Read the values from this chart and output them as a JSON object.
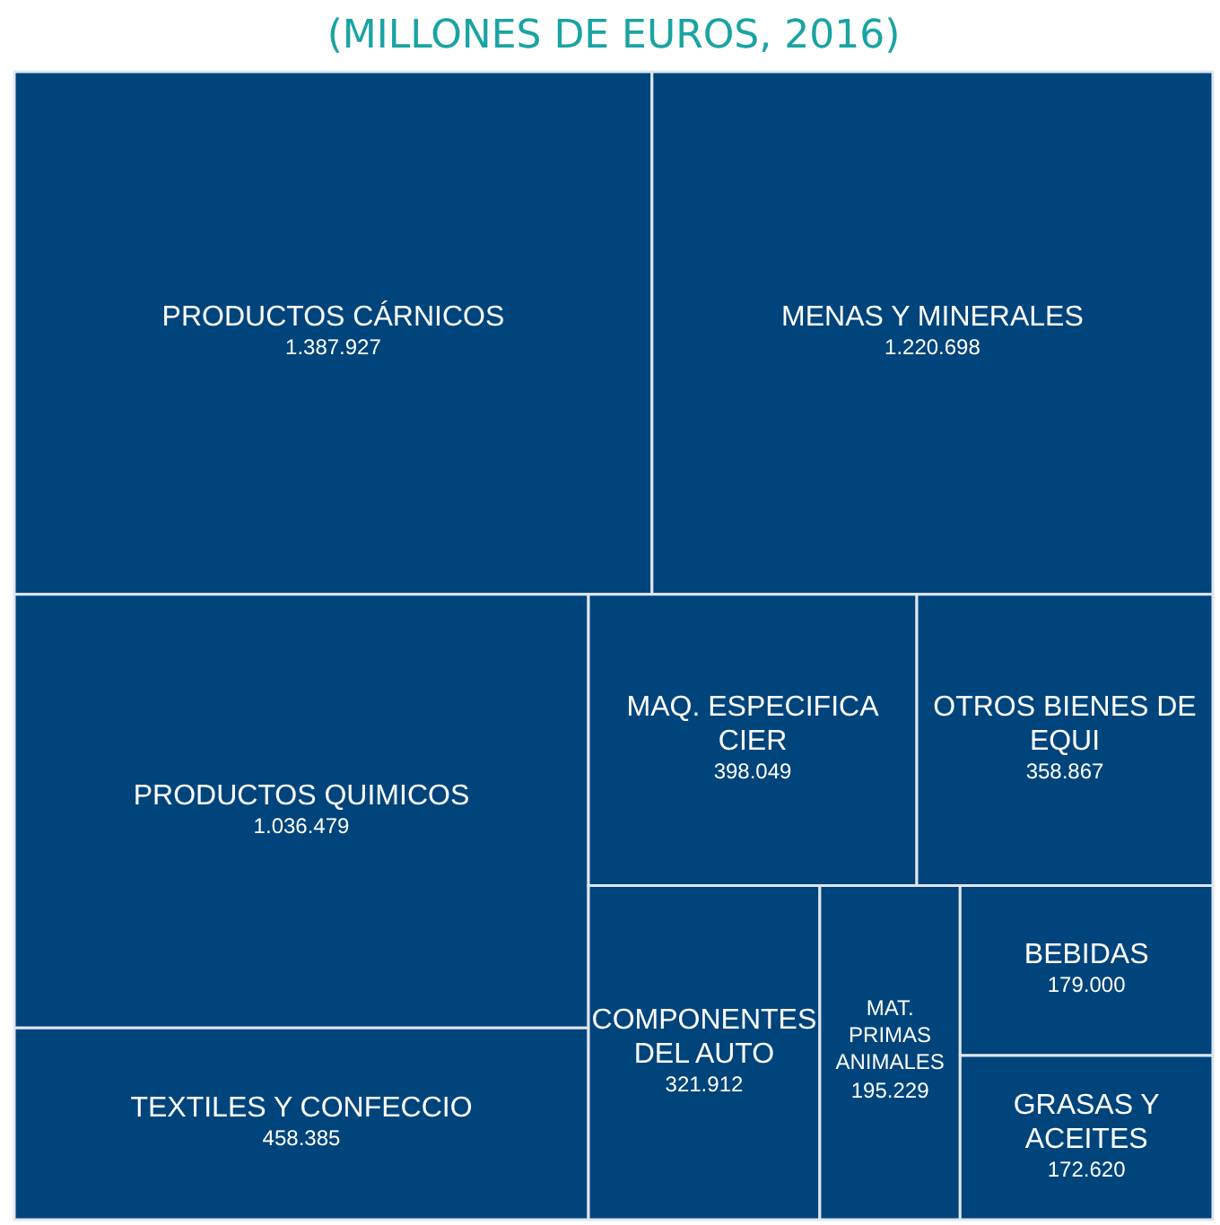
{
  "chart_data": {
    "type": "other",
    "title": "(MILLONES DE EUROS, 2016)",
    "categories": [
      "PRODUCTOS CÁRNICOS",
      "MENAS Y MINERALES",
      "PRODUCTOS QUIMICOS",
      "TEXTILES Y CONFECCIO",
      "MAQ. ESPECIFICA CIER",
      "OTROS BIENES DE EQUI",
      "COMPONENTES DEL AUTO",
      "MAT. PRIMAS ANIMALES",
      "BEBIDAS",
      "GRASAS Y ACEITES"
    ],
    "values": [
      1387927,
      1220698,
      1036479,
      458385,
      398049,
      358867,
      321912,
      195229,
      179000,
      172620
    ],
    "value_labels": [
      "1.387.927",
      "1.220.698",
      "1.036.479",
      "458.385",
      "398.049",
      "358.867",
      "321.912",
      "195.229",
      "179.000",
      "172.620"
    ],
    "colors": [
      "#00447c",
      "#00447c",
      "#00447c",
      "#00447c",
      "#00447c",
      "#00447c",
      "#00447c",
      "#00447c",
      "#00447c",
      "#00447c"
    ],
    "data_labels": true
  }
}
